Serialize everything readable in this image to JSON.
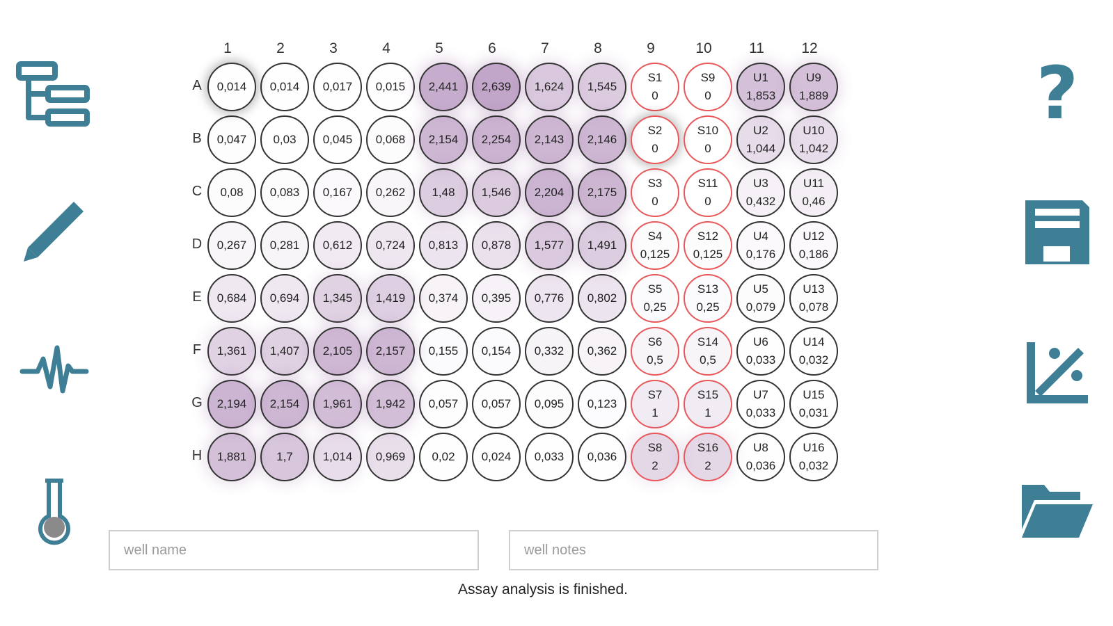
{
  "toolbar_left": {
    "items": [
      {
        "icon": "tree-hierarchy-icon"
      },
      {
        "icon": "pencil-icon"
      },
      {
        "icon": "pulse-waveform-icon"
      },
      {
        "icon": "thermometer-flask-icon"
      }
    ]
  },
  "toolbar_right": {
    "items": [
      {
        "icon": "help-question-icon",
        "label": "?"
      },
      {
        "icon": "save-floppy-icon"
      },
      {
        "icon": "standard-curve-chart-icon"
      },
      {
        "icon": "open-folder-icon"
      }
    ]
  },
  "plate": {
    "columns": [
      "1",
      "2",
      "3",
      "4",
      "5",
      "6",
      "7",
      "8",
      "9",
      "10",
      "11",
      "12"
    ],
    "rows": [
      "A",
      "B",
      "C",
      "D",
      "E",
      "F",
      "G",
      "H"
    ],
    "accent_color": "#8e5a9a",
    "standard_border_color": "#e8585a",
    "wells": [
      [
        "0,014",
        "0,014",
        "0,017",
        "0,015",
        "2,441",
        "2,639",
        "1,624",
        "1,545",
        {
          "name": "S1",
          "value": "0"
        },
        {
          "name": "S9",
          "value": "0"
        },
        {
          "name": "U1",
          "value": "1,853"
        },
        {
          "name": "U9",
          "value": "1,889"
        }
      ],
      [
        "0,047",
        "0,03",
        "0,045",
        "0,068",
        "2,154",
        "2,254",
        "2,143",
        "2,146",
        {
          "name": "S2",
          "value": "0"
        },
        {
          "name": "S10",
          "value": "0"
        },
        {
          "name": "U2",
          "value": "1,044"
        },
        {
          "name": "U10",
          "value": "1,042"
        }
      ],
      [
        "0,08",
        "0,083",
        "0,167",
        "0,262",
        "1,48",
        "1,546",
        "2,204",
        "2,175",
        {
          "name": "S3",
          "value": "0"
        },
        {
          "name": "S11",
          "value": "0"
        },
        {
          "name": "U3",
          "value": "0,432"
        },
        {
          "name": "U11",
          "value": "0,46"
        }
      ],
      [
        "0,267",
        "0,281",
        "0,612",
        "0,724",
        "0,813",
        "0,878",
        "1,577",
        "1,491",
        {
          "name": "S4",
          "value": "0,125"
        },
        {
          "name": "S12",
          "value": "0,125"
        },
        {
          "name": "U4",
          "value": "0,176"
        },
        {
          "name": "U12",
          "value": "0,186"
        }
      ],
      [
        "0,684",
        "0,694",
        "1,345",
        "1,419",
        "0,374",
        "0,395",
        "0,776",
        "0,802",
        {
          "name": "S5",
          "value": "0,25"
        },
        {
          "name": "S13",
          "value": "0,25"
        },
        {
          "name": "U5",
          "value": "0,079"
        },
        {
          "name": "U13",
          "value": "0,078"
        }
      ],
      [
        "1,361",
        "1,407",
        "2,105",
        "2,157",
        "0,155",
        "0,154",
        "0,332",
        "0,362",
        {
          "name": "S6",
          "value": "0,5"
        },
        {
          "name": "S14",
          "value": "0,5"
        },
        {
          "name": "U6",
          "value": "0,033"
        },
        {
          "name": "U14",
          "value": "0,032"
        }
      ],
      [
        "2,194",
        "2,154",
        "1,961",
        "1,942",
        "0,057",
        "0,057",
        "0,095",
        "0,123",
        {
          "name": "S7",
          "value": "1"
        },
        {
          "name": "S15",
          "value": "1"
        },
        {
          "name": "U7",
          "value": "0,033"
        },
        {
          "name": "U15",
          "value": "0,031"
        }
      ],
      [
        "1,881",
        "1,7",
        "1,014",
        "0,969",
        "0,02",
        "0,024",
        "0,033",
        "0,036",
        {
          "name": "S8",
          "value": "2"
        },
        {
          "name": "S16",
          "value": "2"
        },
        {
          "name": "U8",
          "value": "0,036"
        },
        {
          "name": "U16",
          "value": "0,032"
        }
      ]
    ],
    "selected_wells": [
      "A1",
      "B9"
    ]
  },
  "inputs": {
    "well_name_placeholder": "well name",
    "well_notes_placeholder": "well notes"
  },
  "status": {
    "message": "Assay analysis is finished."
  }
}
